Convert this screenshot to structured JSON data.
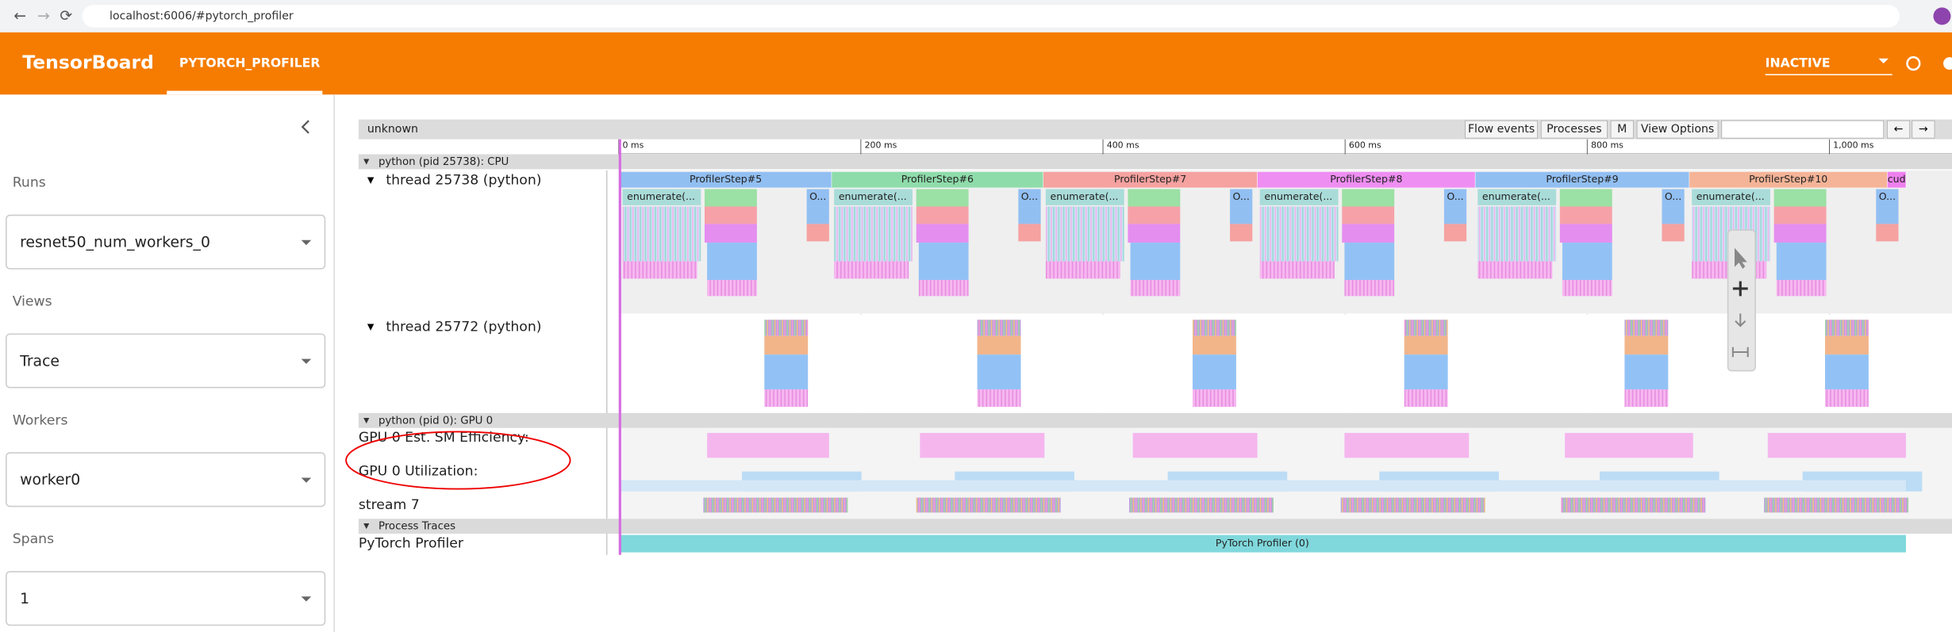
{
  "browser": {
    "url": "localhost:6006/#pytorch_profiler"
  },
  "header": {
    "brand": "TensorBoard",
    "tab": "PYTORCH_PROFILER",
    "status": "INACTIVE"
  },
  "sidebar": {
    "fields": [
      {
        "label": "Runs",
        "value": "resnet50_num_workers_0"
      },
      {
        "label": "Views",
        "value": "Trace"
      },
      {
        "label": "Workers",
        "value": "worker0"
      },
      {
        "label": "Spans",
        "value": "1"
      }
    ]
  },
  "trace": {
    "title": "unknown",
    "buttons": [
      "Flow events",
      "Processes",
      "M",
      "View Options"
    ],
    "nav": [
      "←",
      "→"
    ],
    "ruler": [
      "0 ms",
      "200 ms",
      "400 ms",
      "600 ms",
      "800 ms",
      "1,000 ms"
    ],
    "cpu_process": "python (pid 25738): CPU",
    "threads": [
      "thread 25738 (python)",
      "thread 25772 (python)"
    ],
    "steps": [
      "ProfilerStep#5",
      "ProfilerStep#6",
      "ProfilerStep#7",
      "ProfilerStep#8",
      "ProfilerStep#9",
      "ProfilerStep#10",
      "cud"
    ],
    "enumerate_label": "enumerate(...",
    "other_label": "O...",
    "gpu_process": "python (pid 0): GPU 0",
    "gpu_tracks": [
      "GPU 0 Est. SM Efficiency:",
      "GPU 0 Utilization:",
      "stream 7"
    ],
    "traces_process": "Process Traces",
    "profiler_track": "PyTorch Profiler",
    "profiler_slice": "PyTorch Profiler (0)"
  }
}
